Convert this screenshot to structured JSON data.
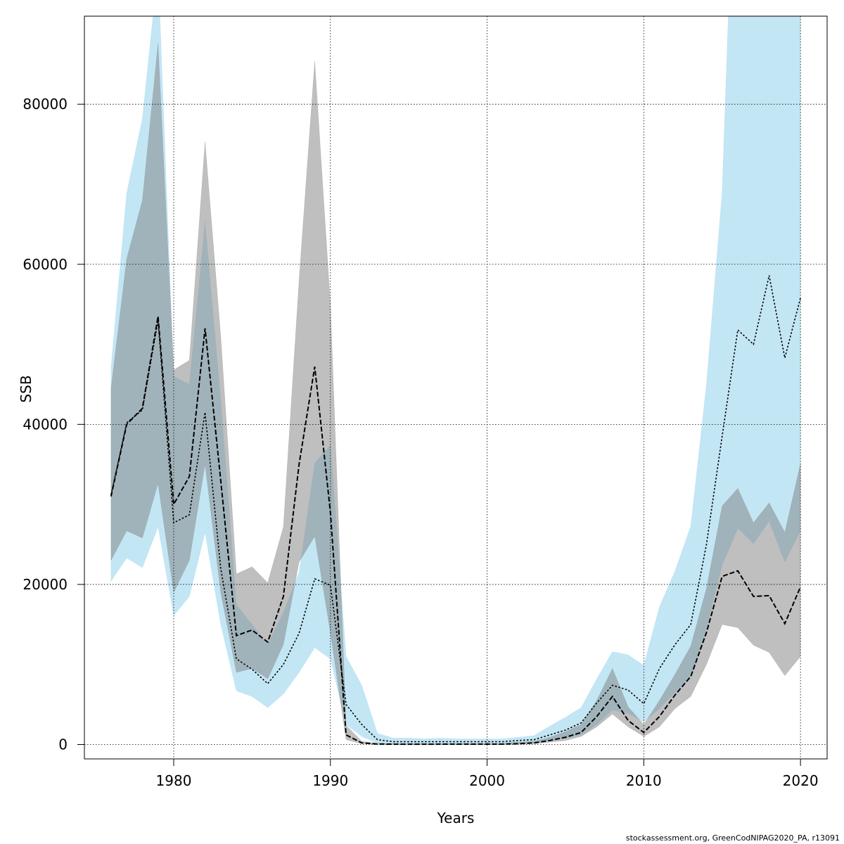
{
  "footer": "stockassessment.org, GreenCodNIPAG2020_PA, r13091",
  "chart_data": {
    "type": "area",
    "title": "",
    "xlabel": "Years",
    "ylabel": "SSB",
    "xlim": [
      1974.3,
      2021.7
    ],
    "ylim": [
      -1800,
      91000
    ],
    "xticks": [
      1980,
      1990,
      2000,
      2010,
      2020
    ],
    "yticks": [
      0,
      20000,
      40000,
      60000,
      80000
    ],
    "grid": true,
    "legend": "none",
    "x": [
      1976,
      1977,
      1978,
      1979,
      1980,
      1981,
      1982,
      1983,
      1984,
      1985,
      1986,
      1987,
      1988,
      1989,
      1990,
      1991,
      1992,
      1993,
      1994,
      1995,
      1996,
      1997,
      1998,
      1999,
      2000,
      2001,
      2002,
      2003,
      2004,
      2005,
      2006,
      2007,
      2008,
      2009,
      2010,
      2011,
      2012,
      2013,
      2014,
      2015,
      2016,
      2017,
      2018,
      2019,
      2020
    ],
    "series": [
      {
        "color": "#000000",
        "band_color": "#808080",
        "line_style": "dashed",
        "values": [
          31000,
          40000,
          42000,
          53500,
          30000,
          33500,
          52000,
          33000,
          13600,
          14300,
          12800,
          18500,
          35000,
          47200,
          29000,
          1200,
          200,
          60,
          40,
          30,
          30,
          40,
          40,
          40,
          40,
          50,
          100,
          200,
          500,
          900,
          1500,
          3500,
          6000,
          3000,
          1500,
          3500,
          6200,
          8500,
          14000,
          21000,
          21700,
          18500,
          18600,
          15100,
          19700
        ],
        "lower": [
          23000,
          26700,
          25800,
          32600,
          19000,
          23000,
          35000,
          19000,
          9000,
          9500,
          8200,
          12500,
          22800,
          26000,
          14000,
          600,
          100,
          20,
          10,
          10,
          10,
          10,
          10,
          10,
          10,
          10,
          40,
          100,
          300,
          500,
          1000,
          2200,
          3800,
          2200,
          1000,
          2200,
          4500,
          6000,
          10000,
          15000,
          14600,
          12400,
          11500,
          8600,
          11000
        ],
        "upper": [
          44500,
          60700,
          68000,
          87600,
          46800,
          48000,
          75300,
          51000,
          21300,
          22200,
          20200,
          27200,
          58000,
          85400,
          55000,
          2400,
          400,
          150,
          120,
          100,
          100,
          100,
          100,
          100,
          100,
          120,
          300,
          400,
          900,
          1600,
          2500,
          5500,
          9500,
          4700,
          2500,
          5500,
          8800,
          12300,
          19500,
          29800,
          32000,
          27700,
          30200,
          26500,
          35100
        ]
      },
      {
        "color": "#000000",
        "band_color": "#87ceeb",
        "line_style": "dotted",
        "values": [
          31200,
          40200,
          41800,
          53000,
          27700,
          28700,
          41500,
          22000,
          10700,
          9400,
          7600,
          10000,
          13900,
          20700,
          19900,
          5000,
          2500,
          600,
          350,
          350,
          350,
          350,
          350,
          350,
          350,
          350,
          500,
          600,
          1200,
          1800,
          2700,
          5200,
          7400,
          6800,
          5100,
          9500,
          12500,
          15000,
          25000,
          38500,
          51800,
          50000,
          58600,
          48300,
          55800
        ],
        "lower": [
          20400,
          23300,
          22100,
          27200,
          16100,
          18500,
          26500,
          15000,
          6700,
          6000,
          4600,
          6300,
          9000,
          12100,
          10700,
          2500,
          1000,
          150,
          100,
          100,
          100,
          100,
          100,
          100,
          100,
          100,
          150,
          200,
          500,
          800,
          1200,
          2500,
          4300,
          3900,
          2800,
          4500,
          6500,
          8500,
          14500,
          22400,
          27000,
          25100,
          27900,
          22800,
          26700
        ],
        "upper": [
          47100,
          68900,
          78200,
          97000,
          46000,
          45000,
          65300,
          43000,
          17500,
          15000,
          12500,
          16500,
          21500,
          35200,
          37400,
          11000,
          7400,
          1400,
          800,
          800,
          700,
          800,
          700,
          700,
          700,
          700,
          900,
          1100,
          2300,
          3400,
          4600,
          8200,
          11600,
          11200,
          9900,
          17200,
          21700,
          27300,
          45000,
          69000,
          125000,
          125000,
          125000,
          125000,
          125000
        ]
      }
    ]
  }
}
